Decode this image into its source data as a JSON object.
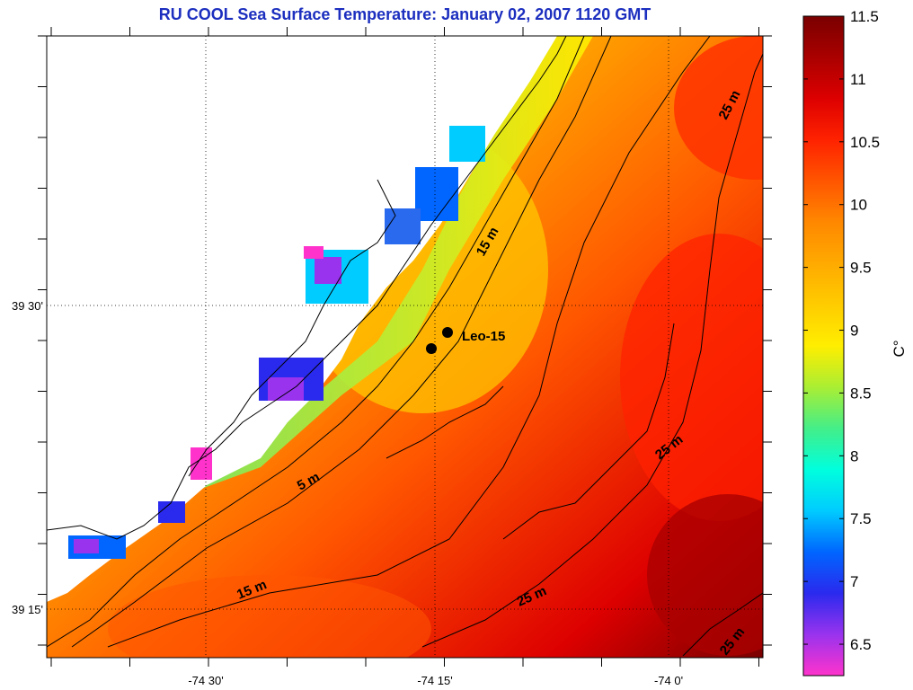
{
  "title": "RU COOL  Sea Surface Temperature:  January 02, 2007 1120 GMT",
  "axes": {
    "lon_ticks": [
      "-74 30'",
      "-74 15'",
      "-74 0'"
    ],
    "lat_ticks": [
      "39 30'",
      "39 15'"
    ]
  },
  "colorbar": {
    "unit": "C°",
    "min": 6.25,
    "max": 11.5,
    "ticks": [
      "6.5",
      "7",
      "7.5",
      "8",
      "8.5",
      "9",
      "9.5",
      "10",
      "10.5",
      "11",
      "11.5"
    ],
    "colors": [
      "#ff33cc",
      "#9933ee",
      "#2a2aee",
      "#0066ff",
      "#00ccff",
      "#00ffdd",
      "#44ee88",
      "#aaee33",
      "#ffee00",
      "#ffcc00",
      "#ffaa00",
      "#ff8800",
      "#ff5500",
      "#ff2200",
      "#dd0000",
      "#aa0000",
      "#7a0000"
    ]
  },
  "contour_labels": [
    "5 m",
    "15 m",
    "15 m",
    "25 m",
    "25 m",
    "25 m",
    "25 m"
  ],
  "station": {
    "name": "Leo-15"
  },
  "colors": {
    "title": "#1c2fbf",
    "land": "#ffffff",
    "contour": "#000000"
  }
}
